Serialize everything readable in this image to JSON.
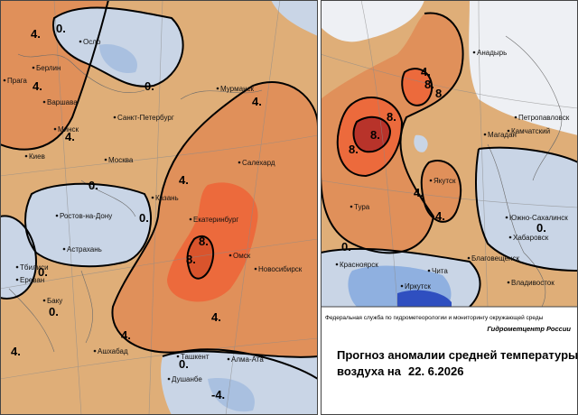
{
  "left_map": {
    "cities": [
      "Осло",
      "Берлин",
      "Прага",
      "Варшава",
      "Минск",
      "Санкт-Петербург",
      "Мурманск",
      "Киев",
      "Москва",
      "Салехард",
      "Казань",
      "Ростов-на-Дону",
      "Екатеринбург",
      "Астрахань",
      "Омск",
      "Тбилиси",
      "Новосибирск",
      "Ереван",
      "Баку",
      "Ашхабад",
      "Ташкент",
      "Алма-Ата",
      "Душанбе"
    ],
    "contours": [
      "4.",
      "0.",
      "4.",
      "0.",
      "4.",
      "4.",
      "0.",
      "4.",
      "0.",
      "8.",
      "8.",
      "0.",
      "0.",
      "4.",
      "4.",
      "0.",
      "-4.",
      "4."
    ]
  },
  "right_map": {
    "cities": [
      "Анадырь",
      "Петропавловск",
      "Камчатский",
      "Магадан",
      "Якутск",
      "Южно-Сахалинск",
      "Тура",
      "Хабаровск",
      "Благовещенск",
      "Красноярск",
      "Чита",
      "Иркутск",
      "Владивосток"
    ],
    "contours": [
      "4.",
      "8.",
      "8.",
      "8.",
      "8.",
      "8.",
      "4.",
      "4.",
      "0.",
      "0."
    ]
  },
  "footer": {
    "agency": "Федеральная служба по гидрометеорологии и мониторингу окружающей среды",
    "center": "Гидрометцентр России",
    "title_line1": "Прогноз аномалии средней температуры",
    "title_line2": "воздуха на",
    "date": "22. 6.2026"
  }
}
